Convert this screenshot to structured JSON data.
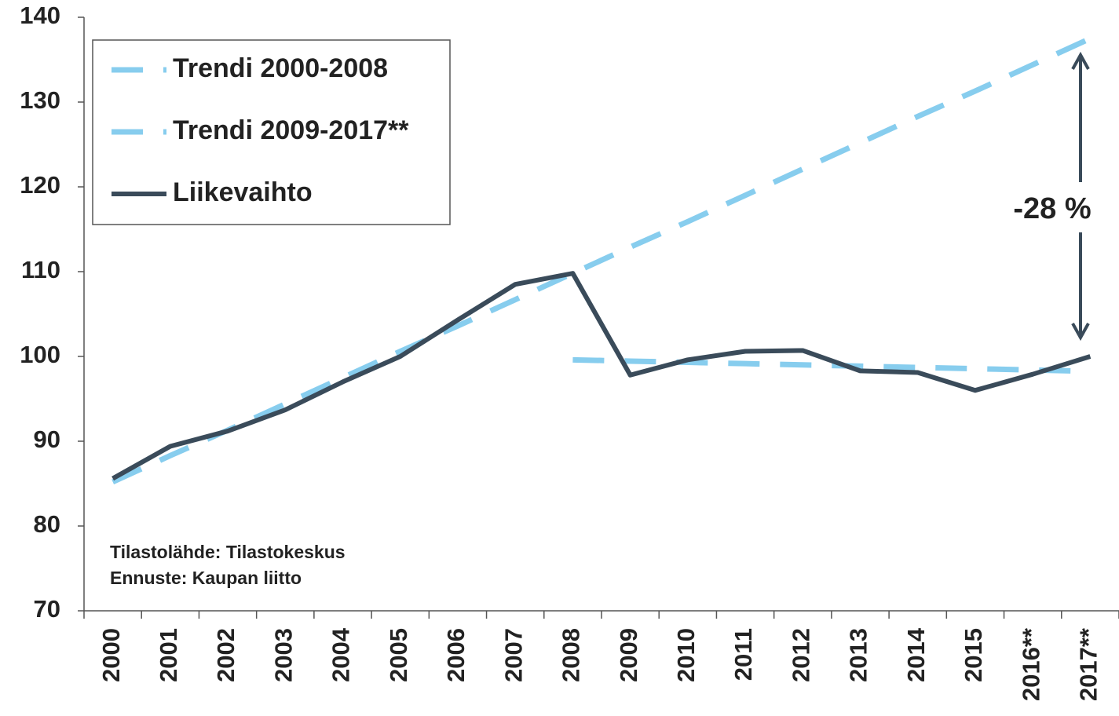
{
  "chart_data": {
    "type": "line",
    "categories": [
      "2000",
      "2001",
      "2002",
      "2003",
      "2004",
      "2005",
      "2006",
      "2007",
      "2008",
      "2009",
      "2010",
      "2011",
      "2012",
      "2013",
      "2014",
      "2015",
      "2016**",
      "2017**"
    ],
    "series": [
      {
        "name": "Trendi 2000-2008",
        "color": "#87cdee",
        "dashed": true,
        "values": [
          85.2,
          88.3,
          91.3,
          94.4,
          97.5,
          100.6,
          103.6,
          106.7,
          109.8,
          112.9,
          115.9,
          119.0,
          122.1,
          125.2,
          128.3,
          131.3,
          134.4,
          137.5
        ]
      },
      {
        "name": "Trendi 2009-2017**",
        "color": "#87cdee",
        "dashed": true,
        "values": [
          null,
          null,
          null,
          null,
          null,
          null,
          null,
          null,
          99.6,
          99.45,
          99.3,
          99.15,
          99.0,
          98.85,
          98.7,
          98.55,
          98.4,
          98.25
        ]
      },
      {
        "name": "Liikevaihto",
        "color": "#3a4b5a",
        "dashed": false,
        "values": [
          85.6,
          89.4,
          91.2,
          93.7,
          97.0,
          100.0,
          104.3,
          108.5,
          109.8,
          97.8,
          99.6,
          100.6,
          100.7,
          98.3,
          98.1,
          96.0,
          97.9,
          100.0
        ]
      }
    ],
    "ylim": [
      70,
      140
    ],
    "yticks": [
      70,
      80,
      90,
      100,
      110,
      120,
      130,
      140
    ],
    "legend": "upper left",
    "annotation": "-28 %",
    "source": [
      "Tilastolähde: Tilastokeskus",
      "Ennuste: Kaupan liitto"
    ]
  }
}
